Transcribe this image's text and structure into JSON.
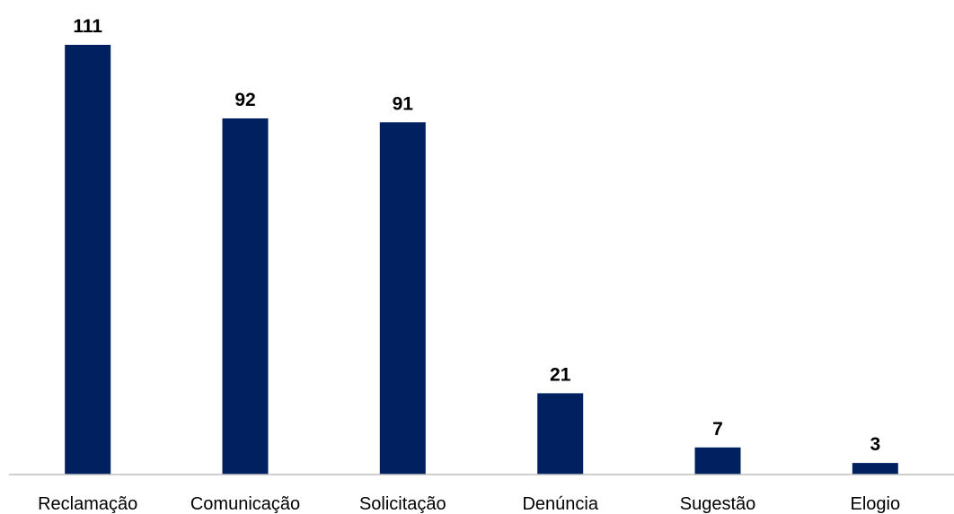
{
  "chart_data": {
    "type": "bar",
    "title": "",
    "xlabel": "",
    "ylabel": "",
    "categories": [
      "Reclamação",
      "Comunicação",
      "Solicitação",
      "Denúncia",
      "Sugestão",
      "Elogio"
    ],
    "values": [
      111,
      92,
      91,
      21,
      7,
      3
    ],
    "data_labels": [
      "111",
      "92",
      "91",
      "21",
      "7",
      "3"
    ],
    "ylim": [
      0,
      111
    ],
    "grid": false,
    "legend": "none",
    "bar_color": "#002060",
    "axis_color": "#bfbfbf"
  }
}
